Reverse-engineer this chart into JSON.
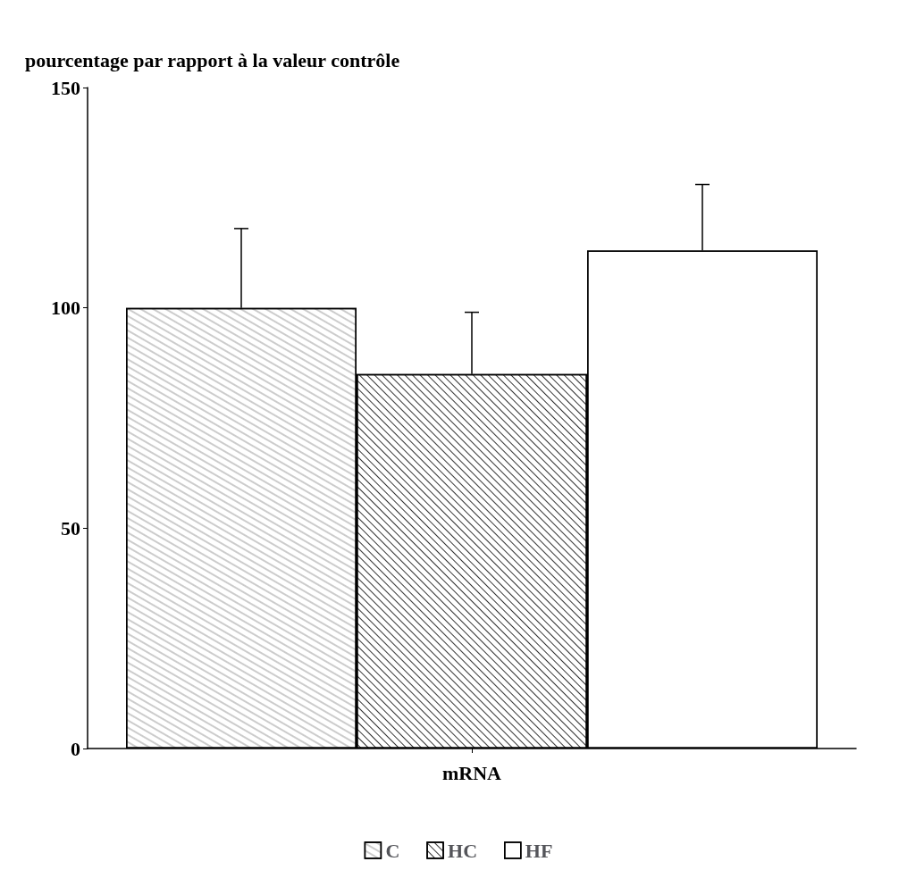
{
  "chart_data": {
    "type": "bar",
    "ylabel": "pourcentage par rapport à la valeur contrôle",
    "categories": [
      "mRNA"
    ],
    "series": [
      {
        "name": "C",
        "color": "#ffffff",
        "values": [
          100
        ],
        "errors": [
          18
        ]
      },
      {
        "name": "HC",
        "color": "#ffffff",
        "values": [
          85
        ],
        "errors": [
          14
        ]
      },
      {
        "name": "HF",
        "color": "#ffffff",
        "values": [
          113
        ],
        "errors": [
          15
        ]
      }
    ],
    "ylim": [
      0,
      150
    ],
    "yticks": [
      0,
      50,
      100,
      150
    ],
    "grid": false,
    "legend": "bottom"
  }
}
